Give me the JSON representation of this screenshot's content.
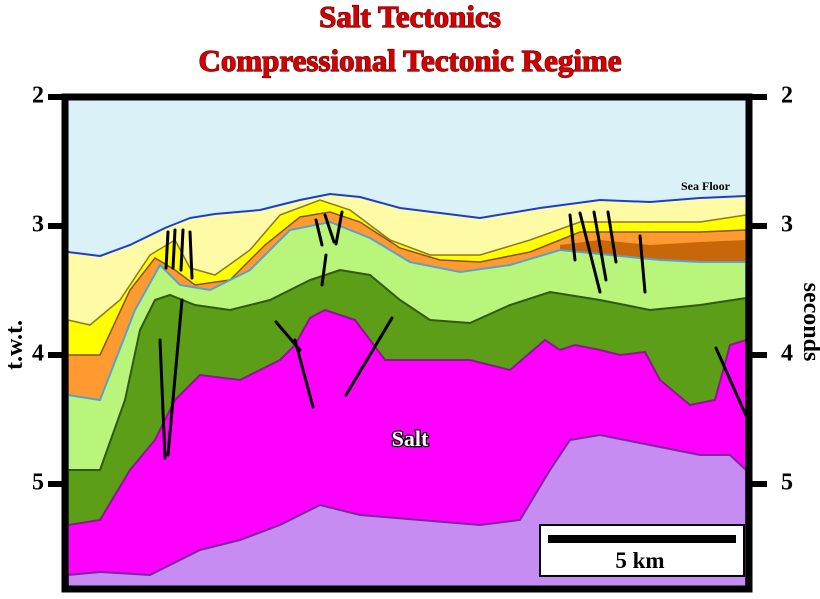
{
  "title": [
    "Salt Tectonics",
    "Compressional Tectonic Regime"
  ],
  "left_axis": {
    "label": "t.w.t.",
    "ticks": [
      2,
      3,
      4,
      5
    ]
  },
  "right_axis": {
    "label": "seconds",
    "ticks": [
      2,
      3,
      4,
      5
    ]
  },
  "labels": {
    "sea_floor": "Sea Floor",
    "salt": "Salt",
    "scale_bar": "5 km"
  }
}
